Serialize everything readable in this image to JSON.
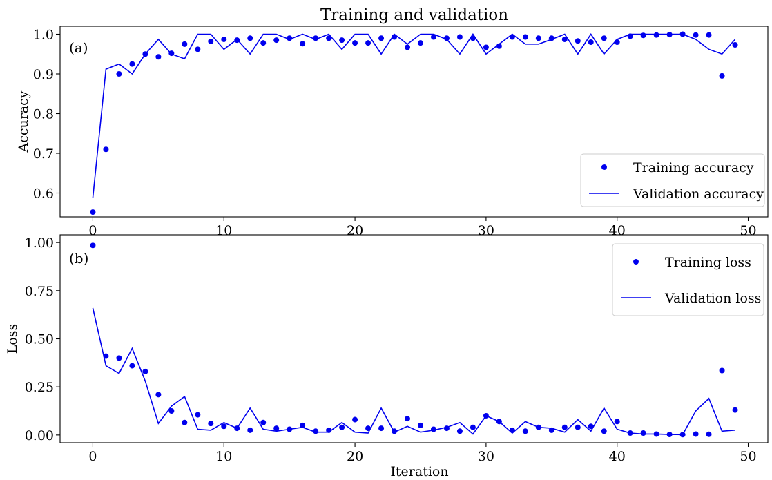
{
  "title": "Training and validation",
  "series_color": "#0000ee",
  "chart_data": [
    {
      "type": "line",
      "panel_label": "(a)",
      "xlabel": "",
      "ylabel": "Accuracy",
      "xlim": [
        -2.5,
        51.5
      ],
      "ylim": [
        0.54,
        1.02
      ],
      "xticks": [
        0,
        10,
        20,
        30,
        40,
        50
      ],
      "yticks": [
        0.6,
        0.7,
        0.8,
        0.9,
        1.0
      ],
      "ytick_labels": [
        "0.6",
        "0.7",
        "0.8",
        "0.9",
        "1.0"
      ],
      "legend_position": "lower-right",
      "x": [
        0,
        1,
        2,
        3,
        4,
        5,
        6,
        7,
        8,
        9,
        10,
        11,
        12,
        13,
        14,
        15,
        16,
        17,
        18,
        19,
        20,
        21,
        22,
        23,
        24,
        25,
        26,
        27,
        28,
        29,
        30,
        31,
        32,
        33,
        34,
        35,
        36,
        37,
        38,
        39,
        40,
        41,
        42,
        43,
        44,
        45,
        46,
        47,
        48,
        49
      ],
      "series": [
        {
          "name": "Training accuracy",
          "style": "points",
          "values": [
            0.552,
            0.71,
            0.9,
            0.925,
            0.95,
            0.943,
            0.952,
            0.975,
            0.962,
            0.982,
            0.987,
            0.985,
            0.99,
            0.978,
            0.985,
            0.99,
            0.976,
            0.99,
            0.99,
            0.985,
            0.978,
            0.978,
            0.99,
            0.993,
            0.967,
            0.978,
            0.993,
            0.99,
            0.993,
            0.99,
            0.967,
            0.97,
            0.993,
            0.993,
            0.99,
            0.99,
            0.987,
            0.983,
            0.98,
            0.99,
            0.98,
            0.995,
            0.997,
            0.998,
            0.999,
            1.0,
            0.998,
            0.998,
            0.895,
            0.973
          ]
        },
        {
          "name": "Validation accuracy",
          "style": "line",
          "values": [
            0.588,
            0.912,
            0.925,
            0.9,
            0.95,
            0.987,
            0.95,
            0.938,
            1.0,
            1.0,
            0.962,
            0.987,
            0.95,
            1.0,
            1.0,
            0.987,
            1.0,
            0.987,
            1.0,
            0.962,
            1.0,
            1.0,
            0.95,
            1.0,
            0.975,
            1.0,
            1.0,
            0.987,
            0.95,
            1.0,
            0.95,
            0.975,
            1.0,
            0.975,
            0.975,
            0.987,
            1.0,
            0.95,
            1.0,
            0.95,
            0.987,
            1.0,
            1.0,
            1.0,
            1.0,
            1.0,
            0.987,
            0.962,
            0.95,
            0.987
          ]
        }
      ]
    },
    {
      "type": "line",
      "panel_label": "(b)",
      "xlabel": "Iteration",
      "ylabel": "Loss",
      "xlim": [
        -2.5,
        51.5
      ],
      "ylim": [
        -0.04,
        1.04
      ],
      "xticks": [
        0,
        10,
        20,
        30,
        40,
        50
      ],
      "yticks": [
        0.0,
        0.25,
        0.5,
        0.75,
        1.0
      ],
      "ytick_labels": [
        "0.00",
        "0.25",
        "0.50",
        "0.75",
        "1.00"
      ],
      "legend_position": "upper-right",
      "x": [
        0,
        1,
        2,
        3,
        4,
        5,
        6,
        7,
        8,
        9,
        10,
        11,
        12,
        13,
        14,
        15,
        16,
        17,
        18,
        19,
        20,
        21,
        22,
        23,
        24,
        25,
        26,
        27,
        28,
        29,
        30,
        31,
        32,
        33,
        34,
        35,
        36,
        37,
        38,
        39,
        40,
        41,
        42,
        43,
        44,
        45,
        46,
        47,
        48,
        49
      ],
      "series": [
        {
          "name": "Training loss",
          "style": "points",
          "values": [
            0.985,
            0.41,
            0.4,
            0.36,
            0.33,
            0.21,
            0.125,
            0.065,
            0.105,
            0.06,
            0.045,
            0.035,
            0.025,
            0.065,
            0.035,
            0.03,
            0.05,
            0.02,
            0.025,
            0.04,
            0.08,
            0.035,
            0.035,
            0.02,
            0.085,
            0.05,
            0.03,
            0.035,
            0.02,
            0.04,
            0.1,
            0.07,
            0.025,
            0.02,
            0.04,
            0.025,
            0.04,
            0.04,
            0.045,
            0.02,
            0.07,
            0.01,
            0.01,
            0.005,
            0.003,
            0.002,
            0.005,
            0.004,
            0.335,
            0.13
          ]
        },
        {
          "name": "Validation loss",
          "style": "line",
          "values": [
            0.66,
            0.36,
            0.32,
            0.45,
            0.28,
            0.06,
            0.15,
            0.2,
            0.03,
            0.025,
            0.065,
            0.035,
            0.14,
            0.03,
            0.02,
            0.03,
            0.04,
            0.015,
            0.015,
            0.065,
            0.015,
            0.01,
            0.14,
            0.015,
            0.045,
            0.015,
            0.025,
            0.04,
            0.065,
            0.005,
            0.1,
            0.07,
            0.01,
            0.07,
            0.04,
            0.035,
            0.015,
            0.08,
            0.02,
            0.14,
            0.03,
            0.01,
            0.005,
            0.005,
            0.003,
            0.002,
            0.125,
            0.19,
            0.02,
            0.025
          ]
        }
      ]
    }
  ]
}
